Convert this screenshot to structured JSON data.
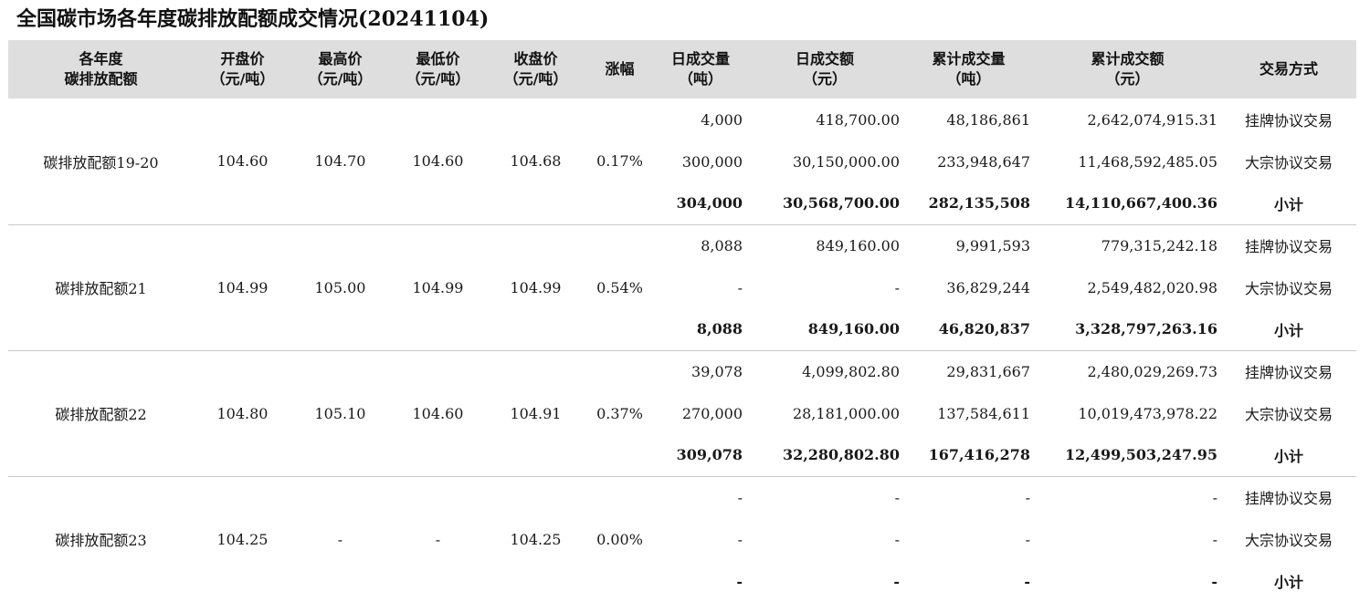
{
  "title": "全国碳市场各年度碳排放配额成交情况(20241104)",
  "headers": {
    "year": [
      "各年度",
      "碳排放配额"
    ],
    "open": [
      "开盘价",
      "（元/吨）"
    ],
    "high": [
      "最高价",
      "（元/吨）"
    ],
    "low": [
      "最低价",
      "（元/吨）"
    ],
    "close": [
      "收盘价",
      "（元/吨）"
    ],
    "change": [
      "涨幅"
    ],
    "daily_vol": [
      "日成交量",
      "（吨）"
    ],
    "daily_amt": [
      "日成交额",
      "（元）"
    ],
    "cum_vol": [
      "累计成交量",
      "（吨）"
    ],
    "cum_amt": [
      "累计成交额",
      "（元）"
    ],
    "method": [
      "交易方式"
    ]
  },
  "groups": [
    {
      "name": "碳排放配额19-20",
      "open": "104.60",
      "high": "104.70",
      "low": "104.60",
      "close": "104.68",
      "change": "0.17%",
      "rows": [
        {
          "daily_vol": "4,000",
          "daily_amt": "418,700.00",
          "cum_vol": "48,186,861",
          "cum_amt": "2,642,074,915.31",
          "method": "挂牌协议交易"
        },
        {
          "daily_vol": "300,000",
          "daily_amt": "30,150,000.00",
          "cum_vol": "233,948,647",
          "cum_amt": "11,468,592,485.05",
          "method": "大宗协议交易"
        },
        {
          "daily_vol": "304,000",
          "daily_amt": "30,568,700.00",
          "cum_vol": "282,135,508",
          "cum_amt": "14,110,667,400.36",
          "method": "小计"
        }
      ]
    },
    {
      "name": "碳排放配额21",
      "open": "104.99",
      "high": "105.00",
      "low": "104.99",
      "close": "104.99",
      "change": "0.54%",
      "rows": [
        {
          "daily_vol": "8,088",
          "daily_amt": "849,160.00",
          "cum_vol": "9,991,593",
          "cum_amt": "779,315,242.18",
          "method": "挂牌协议交易"
        },
        {
          "daily_vol": "-",
          "daily_amt": "-",
          "cum_vol": "36,829,244",
          "cum_amt": "2,549,482,020.98",
          "method": "大宗协议交易"
        },
        {
          "daily_vol": "8,088",
          "daily_amt": "849,160.00",
          "cum_vol": "46,820,837",
          "cum_amt": "3,328,797,263.16",
          "method": "小计"
        }
      ]
    },
    {
      "name": "碳排放配额22",
      "open": "104.80",
      "high": "105.10",
      "low": "104.60",
      "close": "104.91",
      "change": "0.37%",
      "rows": [
        {
          "daily_vol": "39,078",
          "daily_amt": "4,099,802.80",
          "cum_vol": "29,831,667",
          "cum_amt": "2,480,029,269.73",
          "method": "挂牌协议交易"
        },
        {
          "daily_vol": "270,000",
          "daily_amt": "28,181,000.00",
          "cum_vol": "137,584,611",
          "cum_amt": "10,019,473,978.22",
          "method": "大宗协议交易"
        },
        {
          "daily_vol": "309,078",
          "daily_amt": "32,280,802.80",
          "cum_vol": "167,416,278",
          "cum_amt": "12,499,503,247.95",
          "method": "小计"
        }
      ]
    },
    {
      "name": "碳排放配额23",
      "open": "104.25",
      "high": "-",
      "low": "-",
      "close": "104.25",
      "change": "0.00%",
      "rows": [
        {
          "daily_vol": "-",
          "daily_amt": "-",
          "cum_vol": "-",
          "cum_amt": "-",
          "method": "挂牌协议交易"
        },
        {
          "daily_vol": "-",
          "daily_amt": "-",
          "cum_vol": "-",
          "cum_amt": "-",
          "method": "大宗协议交易"
        },
        {
          "daily_vol": "-",
          "daily_amt": "-",
          "cum_vol": "-",
          "cum_amt": "-",
          "method": "小计"
        }
      ]
    }
  ]
}
